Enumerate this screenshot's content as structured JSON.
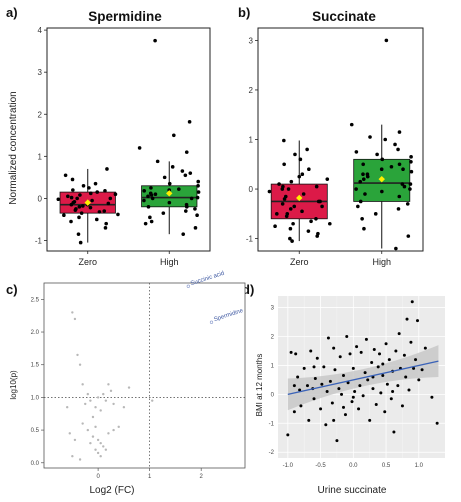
{
  "panel_labels": {
    "a": "a)",
    "b": "b)",
    "c": "c)",
    "d": "d)"
  },
  "colors": {
    "zero": "#dc1a48",
    "high": "#2aa43a",
    "mean": "#ffee00",
    "fit": "#3a62b8",
    "band": "#c8c8c8",
    "scatter_grey": "#b8b8b8"
  },
  "chart_data": [
    {
      "id": "a",
      "type": "box",
      "title": "Spermidine",
      "ylabel": "Normalized concentration",
      "categories": [
        "Zero",
        "High"
      ],
      "ylim": [
        -1.25,
        4.05
      ],
      "yticks": [
        -1,
        0,
        1,
        2,
        3,
        4
      ],
      "boxes": [
        {
          "name": "Zero",
          "whisker_low": -1.05,
          "q1": -0.35,
          "median": -0.15,
          "q3": 0.15,
          "whisker_high": 0.7,
          "mean": -0.1,
          "color": "#dc1a48"
        },
        {
          "name": "High",
          "whisker_low": -0.85,
          "q1": -0.2,
          "median": 0.02,
          "q3": 0.3,
          "whisker_high": 0.88,
          "mean": 0.12,
          "color": "#2aa43a"
        }
      ],
      "points": [
        [
          0,
          -1.05
        ],
        [
          0,
          -0.85
        ],
        [
          0,
          -0.7
        ],
        [
          0,
          -0.6
        ],
        [
          0,
          -0.5
        ],
        [
          0,
          -0.45
        ],
        [
          0,
          -0.4
        ],
        [
          0,
          -0.38
        ],
        [
          0,
          -0.32
        ],
        [
          0,
          -0.3
        ],
        [
          0,
          -0.28
        ],
        [
          0,
          -0.25
        ],
        [
          0,
          -0.22
        ],
        [
          0,
          -0.2
        ],
        [
          0,
          -0.18
        ],
        [
          0,
          -0.15
        ],
        [
          0,
          -0.12
        ],
        [
          0,
          -0.1
        ],
        [
          0,
          -0.08
        ],
        [
          0,
          -0.05
        ],
        [
          0,
          -0.02
        ],
        [
          0,
          0.0
        ],
        [
          0,
          0.02
        ],
        [
          0,
          0.05
        ],
        [
          0,
          0.08
        ],
        [
          0,
          0.1
        ],
        [
          0,
          0.12
        ],
        [
          0,
          0.15
        ],
        [
          0,
          0.2
        ],
        [
          0,
          0.25
        ],
        [
          0,
          0.3
        ],
        [
          0,
          0.35
        ],
        [
          0,
          0.45
        ],
        [
          0,
          0.55
        ],
        [
          0,
          0.7
        ],
        [
          0,
          -0.55
        ],
        [
          0,
          -0.35
        ],
        [
          0,
          -0.15
        ],
        [
          0,
          0.0
        ],
        [
          0,
          0.18
        ],
        [
          1,
          -0.85
        ],
        [
          1,
          -0.7
        ],
        [
          1,
          -0.55
        ],
        [
          1,
          -0.45
        ],
        [
          1,
          -0.35
        ],
        [
          1,
          -0.3
        ],
        [
          1,
          -0.25
        ],
        [
          1,
          -0.2
        ],
        [
          1,
          -0.15
        ],
        [
          1,
          -0.1
        ],
        [
          1,
          -0.05
        ],
        [
          1,
          0.0
        ],
        [
          1,
          0.02
        ],
        [
          1,
          0.05
        ],
        [
          1,
          0.08
        ],
        [
          1,
          0.1
        ],
        [
          1,
          0.12
        ],
        [
          1,
          0.15
        ],
        [
          1,
          0.2
        ],
        [
          1,
          0.22
        ],
        [
          1,
          0.25
        ],
        [
          1,
          0.3
        ],
        [
          1,
          0.35
        ],
        [
          1,
          0.4
        ],
        [
          1,
          0.5
        ],
        [
          1,
          0.55
        ],
        [
          1,
          0.65
        ],
        [
          1,
          0.75
        ],
        [
          1,
          0.88
        ],
        [
          1,
          1.1
        ],
        [
          1,
          1.2
        ],
        [
          1,
          1.5
        ],
        [
          1,
          1.82
        ],
        [
          1,
          3.75
        ],
        [
          1,
          0.0
        ],
        [
          1,
          -0.2
        ],
        [
          1,
          0.18
        ],
        [
          1,
          -0.4
        ],
        [
          1,
          0.6
        ],
        [
          1,
          -0.6
        ]
      ]
    },
    {
      "id": "b",
      "type": "box",
      "title": "Succinate",
      "ylabel": "",
      "categories": [
        "Zero",
        "High"
      ],
      "ylim": [
        -1.25,
        3.25
      ],
      "yticks": [
        -1,
        0,
        1,
        2,
        3
      ],
      "boxes": [
        {
          "name": "Zero",
          "whisker_low": -1.05,
          "q1": -0.6,
          "median": -0.25,
          "q3": 0.1,
          "whisker_high": 0.98,
          "mean": -0.18,
          "color": "#dc1a48"
        },
        {
          "name": "High",
          "whisker_low": -1.2,
          "q1": -0.25,
          "median": 0.12,
          "q3": 0.6,
          "whisker_high": 1.3,
          "mean": 0.2,
          "color": "#2aa43a"
        }
      ],
      "points": [
        [
          0,
          -1.05
        ],
        [
          0,
          -1.0
        ],
        [
          0,
          -0.95
        ],
        [
          0,
          -0.9
        ],
        [
          0,
          -0.85
        ],
        [
          0,
          -0.8
        ],
        [
          0,
          -0.75
        ],
        [
          0,
          -0.7
        ],
        [
          0,
          -0.65
        ],
        [
          0,
          -0.6
        ],
        [
          0,
          -0.55
        ],
        [
          0,
          -0.5
        ],
        [
          0,
          -0.45
        ],
        [
          0,
          -0.4
        ],
        [
          0,
          -0.35
        ],
        [
          0,
          -0.3
        ],
        [
          0,
          -0.25
        ],
        [
          0,
          -0.2
        ],
        [
          0,
          -0.15
        ],
        [
          0,
          -0.1
        ],
        [
          0,
          -0.05
        ],
        [
          0,
          0.0
        ],
        [
          0,
          0.05
        ],
        [
          0,
          0.1
        ],
        [
          0,
          0.15
        ],
        [
          0,
          0.2
        ],
        [
          0,
          0.3
        ],
        [
          0,
          0.4
        ],
        [
          0,
          0.5
        ],
        [
          0,
          0.6
        ],
        [
          0,
          0.7
        ],
        [
          0,
          0.8
        ],
        [
          0,
          0.98
        ],
        [
          0,
          -0.5
        ],
        [
          0,
          -0.25
        ],
        [
          0,
          0.0
        ],
        [
          0,
          -0.7
        ],
        [
          0,
          0.25
        ],
        [
          0,
          -0.35
        ],
        [
          0,
          0.05
        ],
        [
          1,
          -1.2
        ],
        [
          1,
          -0.95
        ],
        [
          1,
          -0.8
        ],
        [
          1,
          -0.6
        ],
        [
          1,
          -0.5
        ],
        [
          1,
          -0.4
        ],
        [
          1,
          -0.3
        ],
        [
          1,
          -0.25
        ],
        [
          1,
          -0.15
        ],
        [
          1,
          -0.05
        ],
        [
          1,
          0.0
        ],
        [
          1,
          0.05
        ],
        [
          1,
          0.1
        ],
        [
          1,
          0.15
        ],
        [
          1,
          0.2
        ],
        [
          1,
          0.25
        ],
        [
          1,
          0.3
        ],
        [
          1,
          0.35
        ],
        [
          1,
          0.4
        ],
        [
          1,
          0.45
        ],
        [
          1,
          0.5
        ],
        [
          1,
          0.55
        ],
        [
          1,
          0.6
        ],
        [
          1,
          0.65
        ],
        [
          1,
          0.7
        ],
        [
          1,
          0.8
        ],
        [
          1,
          0.9
        ],
        [
          1,
          1.0
        ],
        [
          1,
          1.05
        ],
        [
          1,
          1.15
        ],
        [
          1,
          1.3
        ],
        [
          1,
          3.0
        ],
        [
          1,
          0.1
        ],
        [
          1,
          0.3
        ],
        [
          1,
          -0.1
        ],
        [
          1,
          0.5
        ],
        [
          1,
          0.75
        ],
        [
          1,
          0.0
        ],
        [
          1,
          0.4
        ],
        [
          1,
          -0.35
        ]
      ]
    },
    {
      "id": "c",
      "type": "scatter",
      "xlabel": "Log2 (FC)",
      "ylabel": "log10(p)",
      "xlim": [
        -1.05,
        2.85
      ],
      "ylim": [
        -0.08,
        2.75
      ],
      "xticks": [
        0,
        1,
        2
      ],
      "yticks": [
        0.0,
        0.5,
        1.0,
        1.5,
        2.0,
        2.5
      ],
      "vline": 1,
      "hline": 1,
      "labeled_points": [
        {
          "x": 1.75,
          "y": 2.7,
          "label": "Succinic acid"
        },
        {
          "x": 2.2,
          "y": 2.15,
          "label": "Spermidine"
        }
      ],
      "points": [
        [
          -0.6,
          0.85
        ],
        [
          -0.5,
          2.3
        ],
        [
          -0.45,
          2.2
        ],
        [
          -0.4,
          1.65
        ],
        [
          -0.35,
          1.5
        ],
        [
          -0.3,
          1.2
        ],
        [
          -0.25,
          0.9
        ],
        [
          -0.2,
          1.05
        ],
        [
          -0.15,
          0.95
        ],
        [
          -0.1,
          0.7
        ],
        [
          -0.05,
          0.85
        ],
        [
          0.0,
          1.0
        ],
        [
          0.05,
          0.8
        ],
        [
          0.1,
          1.05
        ],
        [
          0.15,
          0.95
        ],
        [
          0.2,
          1.2
        ],
        [
          0.25,
          1.1
        ],
        [
          0.3,
          0.9
        ],
        [
          0.4,
          0.55
        ],
        [
          0.5,
          0.85
        ],
        [
          1.05,
          0.95
        ],
        [
          -0.55,
          0.45
        ],
        [
          -0.45,
          0.35
        ],
        [
          -0.2,
          0.5
        ],
        [
          -0.1,
          0.4
        ],
        [
          0.0,
          0.35
        ],
        [
          0.05,
          0.3
        ],
        [
          0.1,
          0.25
        ],
        [
          -0.05,
          0.2
        ],
        [
          0.0,
          0.15
        ],
        [
          0.05,
          0.1
        ],
        [
          -0.15,
          0.3
        ],
        [
          0.15,
          0.2
        ],
        [
          0.2,
          0.45
        ],
        [
          -0.3,
          0.6
        ],
        [
          -0.5,
          0.1
        ],
        [
          -0.05,
          0.55
        ],
        [
          0.6,
          1.15
        ],
        [
          0.3,
          0.5
        ],
        [
          -0.35,
          0.05
        ]
      ]
    },
    {
      "id": "d",
      "type": "scatter",
      "xlabel": "Urine succinate",
      "ylabel": "BMI at 12 months",
      "xlim": [
        -1.15,
        1.4
      ],
      "ylim": [
        -2.2,
        3.4
      ],
      "xticks": [
        -1.0,
        -0.5,
        0.0,
        0.5,
        1.0
      ],
      "yticks": [
        -2,
        -1,
        0,
        1,
        2,
        3
      ],
      "fit": {
        "x0": -1.0,
        "y0": 0.0,
        "x1": 1.3,
        "y1": 1.15
      },
      "band_halfwidth_ends": 0.55,
      "band_halfwidth_mid": 0.22,
      "points": [
        [
          -1.0,
          -1.4
        ],
        [
          -0.95,
          1.45
        ],
        [
          -0.9,
          0.3
        ],
        [
          -0.88,
          1.4
        ],
        [
          -0.85,
          0.6
        ],
        [
          -0.82,
          0.15
        ],
        [
          -0.8,
          -0.4
        ],
        [
          -0.75,
          0.9
        ],
        [
          -0.7,
          0.3
        ],
        [
          -0.68,
          -0.9
        ],
        [
          -0.65,
          1.5
        ],
        [
          -0.62,
          0.2
        ],
        [
          -0.6,
          -0.15
        ],
        [
          -0.58,
          0.55
        ],
        [
          -0.55,
          1.25
        ],
        [
          -0.5,
          -0.5
        ],
        [
          -0.48,
          0.35
        ],
        [
          -0.45,
          0.95
        ],
        [
          -0.42,
          -1.05
        ],
        [
          -0.4,
          0.1
        ],
        [
          -0.38,
          1.95
        ],
        [
          -0.35,
          0.45
        ],
        [
          -0.32,
          -0.3
        ],
        [
          -0.3,
          1.6
        ],
        [
          -0.28,
          0.85
        ],
        [
          -0.25,
          -1.6
        ],
        [
          -0.22,
          0.2
        ],
        [
          -0.2,
          1.3
        ],
        [
          -0.18,
          0.0
        ],
        [
          -0.15,
          0.65
        ],
        [
          -0.12,
          -0.7
        ],
        [
          -0.1,
          2.0
        ],
        [
          -0.08,
          0.4
        ],
        [
          -0.05,
          1.4
        ],
        [
          -0.02,
          -0.25
        ],
        [
          0.0,
          0.9
        ],
        [
          0.02,
          0.1
        ],
        [
          0.05,
          1.65
        ],
        [
          0.08,
          -0.5
        ],
        [
          0.1,
          0.3
        ],
        [
          0.12,
          1.45
        ],
        [
          0.15,
          -0.05
        ],
        [
          0.18,
          0.75
        ],
        [
          0.2,
          1.9
        ],
        [
          0.22,
          0.5
        ],
        [
          0.25,
          -0.9
        ],
        [
          0.28,
          1.1
        ],
        [
          0.3,
          0.2
        ],
        [
          0.32,
          1.55
        ],
        [
          0.35,
          -0.35
        ],
        [
          0.38,
          0.95
        ],
        [
          0.4,
          1.4
        ],
        [
          0.42,
          0.05
        ],
        [
          0.45,
          0.65
        ],
        [
          0.48,
          -0.6
        ],
        [
          0.5,
          1.75
        ],
        [
          0.52,
          0.35
        ],
        [
          0.55,
          1.2
        ],
        [
          0.58,
          -0.15
        ],
        [
          0.6,
          0.8
        ],
        [
          0.62,
          -1.3
        ],
        [
          0.65,
          1.5
        ],
        [
          0.68,
          0.3
        ],
        [
          0.7,
          2.1
        ],
        [
          0.72,
          0.9
        ],
        [
          0.75,
          -0.4
        ],
        [
          0.78,
          1.35
        ],
        [
          0.8,
          0.6
        ],
        [
          0.82,
          2.6
        ],
        [
          0.85,
          0.15
        ],
        [
          0.88,
          1.8
        ],
        [
          0.9,
          3.2
        ],
        [
          0.92,
          0.9
        ],
        [
          0.95,
          1.2
        ],
        [
          0.98,
          2.55
        ],
        [
          1.0,
          0.5
        ],
        [
          1.05,
          0.85
        ],
        [
          1.1,
          1.6
        ],
        [
          1.2,
          -0.1
        ],
        [
          1.28,
          -1.0
        ],
        [
          -0.9,
          -0.6
        ],
        [
          -0.6,
          0.95
        ],
        [
          -0.3,
          -0.9
        ],
        [
          0.0,
          -0.1
        ],
        [
          0.3,
          0.6
        ],
        [
          0.6,
          0.1
        ],
        [
          -0.15,
          -0.45
        ],
        [
          0.45,
          1.05
        ]
      ]
    }
  ]
}
